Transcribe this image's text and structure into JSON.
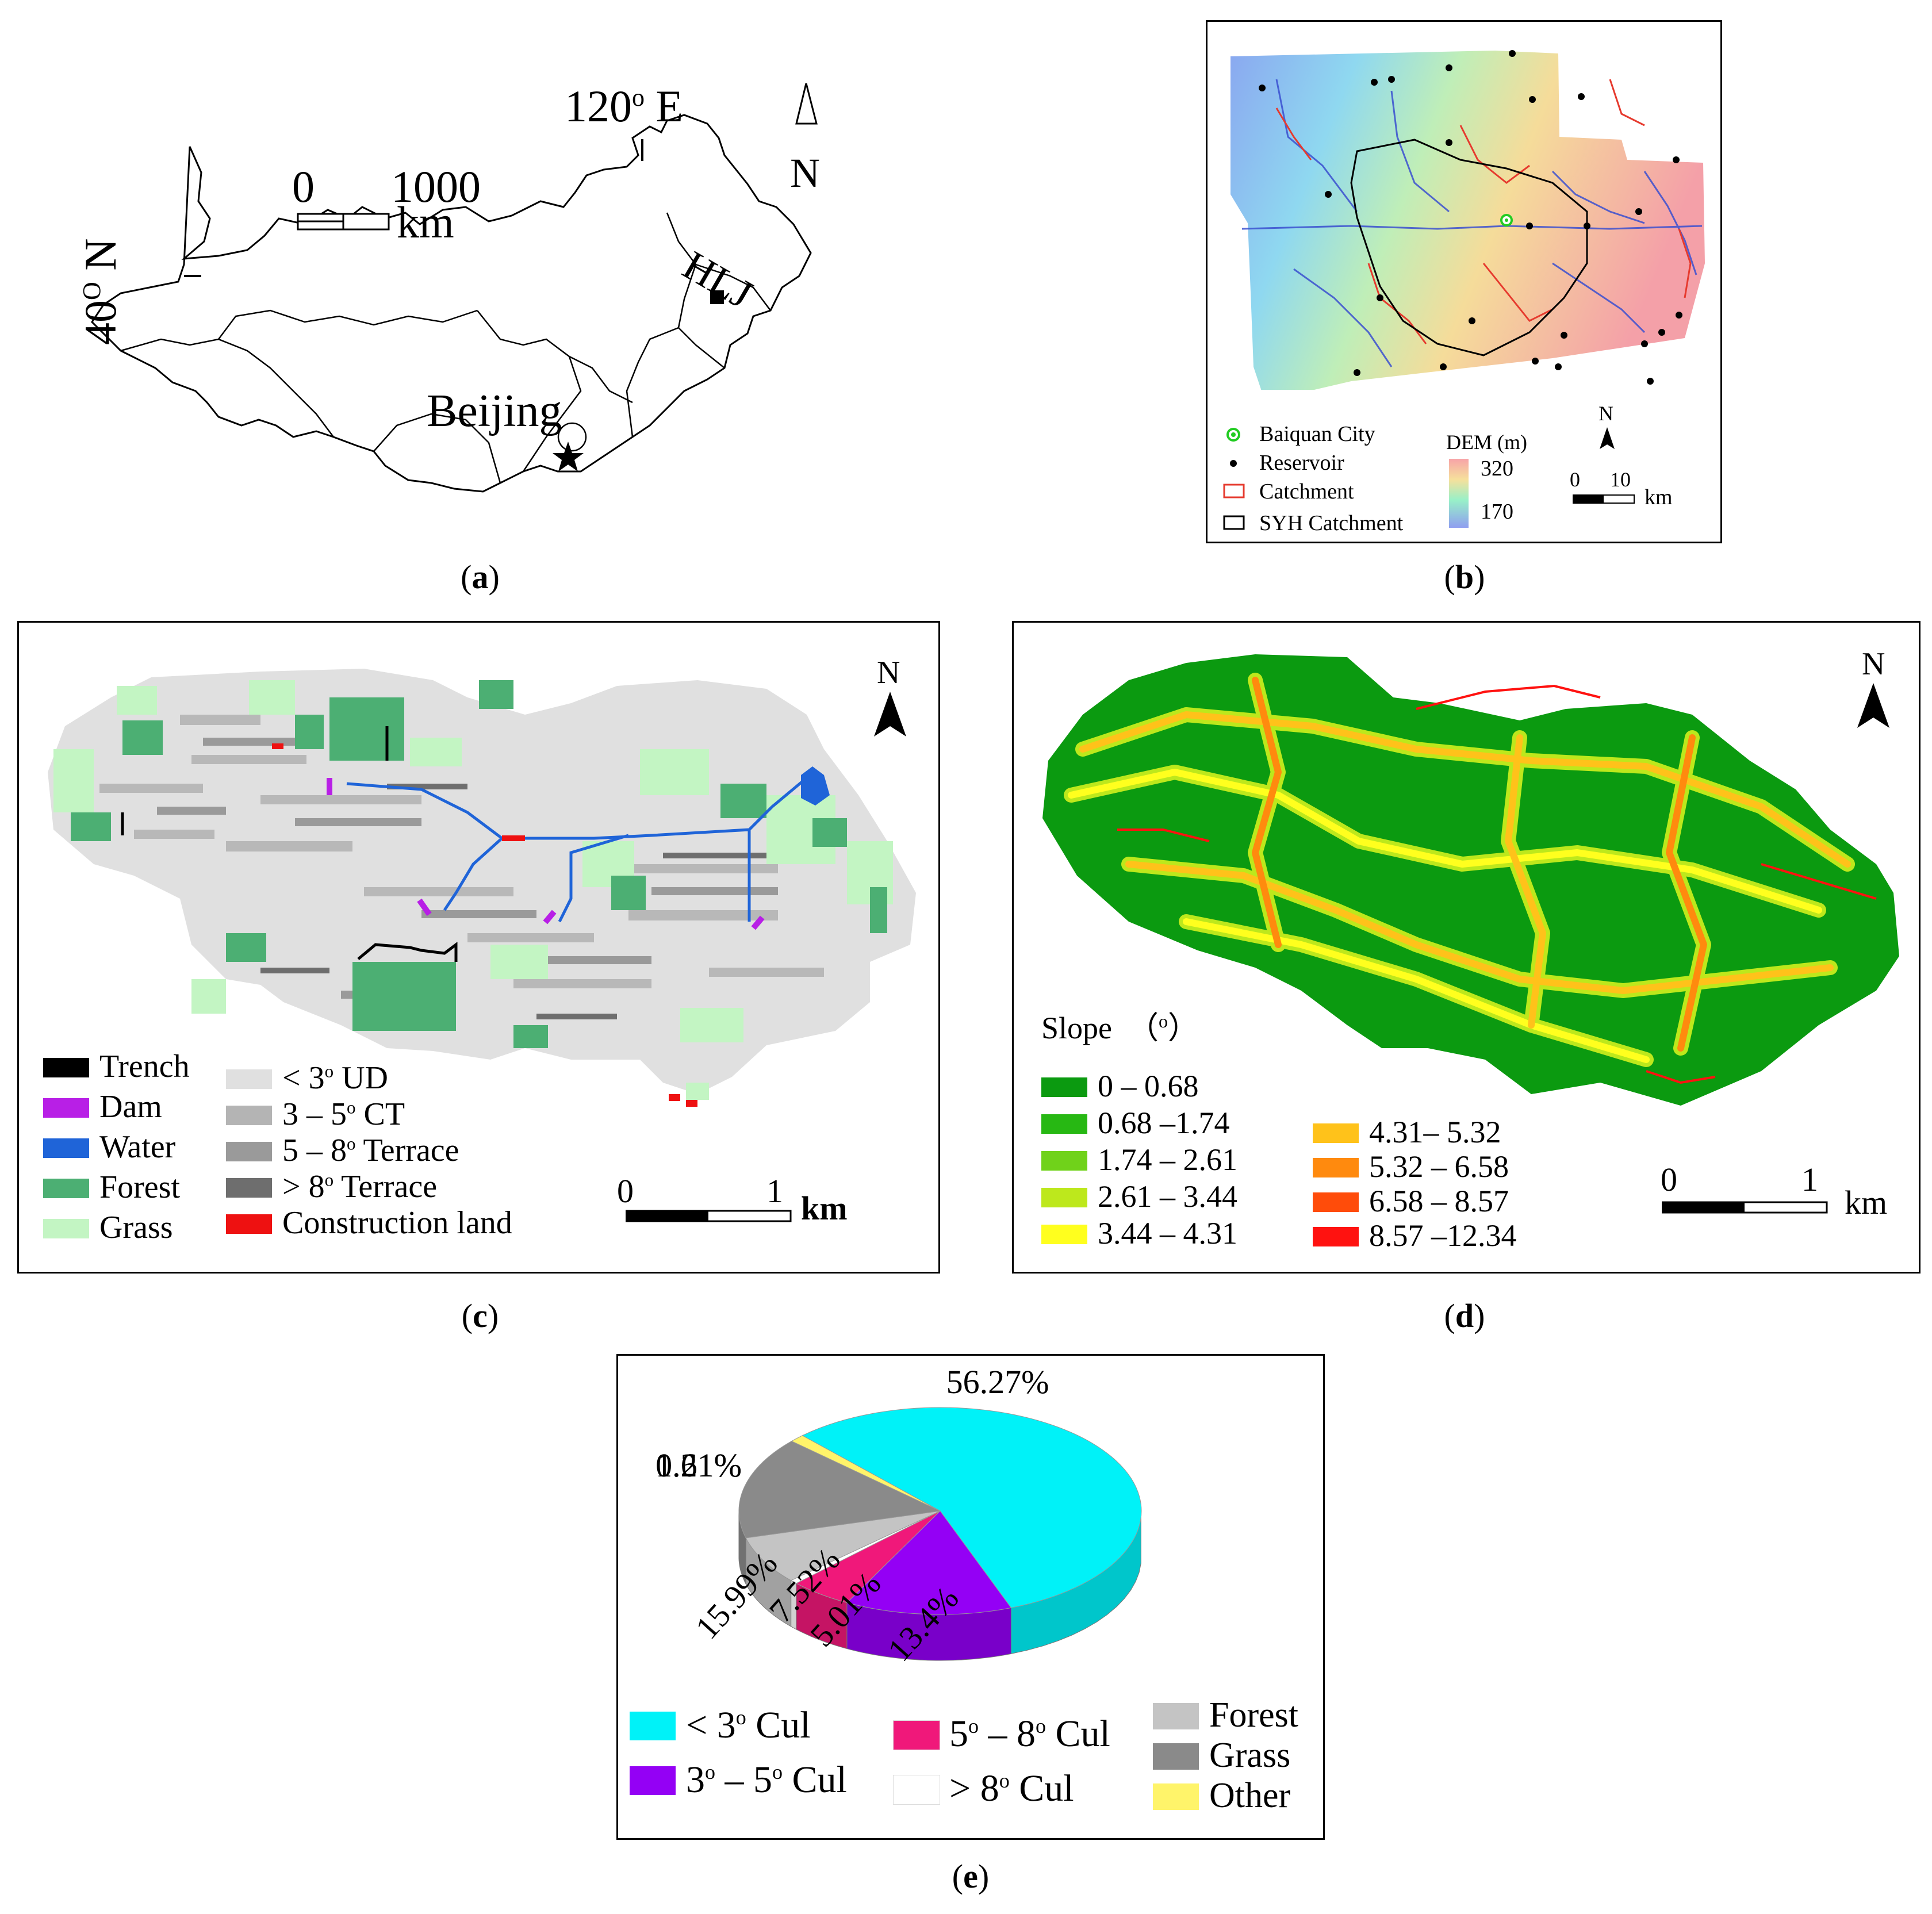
{
  "panel_a": {
    "caption_letter": "a",
    "lon_label": "120",
    "lon_deg": "o",
    "lon_dir": "E",
    "lat_label": "40",
    "lat_deg": "O",
    "lat_dir": "N",
    "north": "N",
    "scale": {
      "start": "0",
      "end": "1000",
      "unit": "km"
    },
    "places": {
      "hlj": "HLJ",
      "beijing": "Beijing"
    }
  },
  "panel_b": {
    "caption_letter": "b",
    "legend": {
      "city": "Baiquan City",
      "reservoir": "Reservoir",
      "catchment": "Catchment",
      "syh": "SYH Catchment"
    },
    "dem": {
      "title": "DEM (m)",
      "max": "320",
      "min": "170"
    },
    "north": "N",
    "scale": {
      "start": "0",
      "end": "10",
      "unit": "km"
    },
    "colors": {
      "catchment": "#e63a2e",
      "syh": "#000000",
      "city": "#22cc22"
    }
  },
  "panel_c": {
    "caption_letter": "c",
    "north": "N",
    "scale": {
      "start": "0",
      "end": "1",
      "unit": "km"
    },
    "legend_left": [
      {
        "label": "Trench",
        "color": "#000000"
      },
      {
        "label": "Dam",
        "color": "#b81fe6"
      },
      {
        "label": "Water",
        "color": "#1f64d8"
      },
      {
        "label": "Forest",
        "color": "#4caf73"
      },
      {
        "label": "Grass",
        "color": "#c3f5c3"
      }
    ],
    "legend_right": [
      {
        "pre": "< 3",
        "sup": "o",
        "post": " UD",
        "color": "#e0e0e0"
      },
      {
        "pre": "3 – 5",
        "sup": "o",
        "post": " CT",
        "color": "#b4b4b4"
      },
      {
        "pre": "5 – 8",
        "sup": "o",
        "post": " Terrace",
        "color": "#9a9a9a"
      },
      {
        "pre": "> 8",
        "sup": "o",
        "post": " Terrace",
        "color": "#6e6e6e"
      },
      {
        "pre": "Construction land",
        "sup": "",
        "post": "",
        "color": "#ee1111"
      }
    ]
  },
  "panel_d": {
    "caption_letter": "d",
    "north": "N",
    "slope_title": "Slope  （",
    "slope_unit": "o",
    "slope_close": "）",
    "scale": {
      "start": "0",
      "end": "1",
      "unit": "km"
    },
    "legend_left": [
      {
        "label": "0 – 0.68",
        "color": "#0b9a10"
      },
      {
        "label": "0.68 –1.74",
        "color": "#27b813"
      },
      {
        "label": "1.74 – 2.61",
        "color": "#70d21a"
      },
      {
        "label": "2.61 – 3.44",
        "color": "#bde81c"
      },
      {
        "label": "3.44 – 4.31",
        "color": "#ffff1e"
      }
    ],
    "legend_right": [
      {
        "label": "4.31– 5.32",
        "color": "#ffc21a"
      },
      {
        "label": "5.32 – 6.58",
        "color": "#ff8a0e"
      },
      {
        "label": "6.58 – 8.57",
        "color": "#ff4c0a"
      },
      {
        "label": "8.57 –12.34",
        "color": "#ff1210"
      }
    ]
  },
  "panel_e": {
    "caption_letter": "e",
    "chart_data": {
      "type": "pie",
      "slices": [
        {
          "name": "< 3° Cul",
          "value": 56.27,
          "label": "56.27%",
          "color": "#00f2f8"
        },
        {
          "name": "3° – 5° Cul",
          "value": 13.4,
          "label": "13.4%",
          "color": "#9400f5"
        },
        {
          "name": "5° – 8° Cul",
          "value": 5.01,
          "label": "5.01%",
          "color": "#f0187a"
        },
        {
          "name": "> 8° Cul",
          "value": 0.61,
          "label": "0.61%",
          "color": "#ffffff"
        },
        {
          "name": "Forest",
          "value": 7.52,
          "label": "7.52%",
          "color": "#c4c4c4"
        },
        {
          "name": "Grass",
          "value": 15.99,
          "label": "15.99%",
          "color": "#8a8a8a"
        },
        {
          "name": "Other",
          "value": 1.21,
          "label": "1.21%",
          "color": "#fff46a"
        }
      ]
    },
    "legend_left": [
      {
        "pre": "< 3",
        "sup": "o",
        "post": " Cul",
        "color": "#00f2f8"
      },
      {
        "pre": "3",
        "sup": "o",
        "post": " – 5",
        "sup2": "o",
        "post2": " Cul",
        "color": "#9400f5"
      }
    ],
    "legend_mid": [
      {
        "pre": "5",
        "sup": "o",
        "post": " – 8",
        "sup2": "o",
        "post2": " Cul",
        "color": "#f0187a"
      },
      {
        "pre": "> 8",
        "sup": "o",
        "post": " Cul",
        "color": "#ffffff"
      }
    ],
    "legend_right": [
      {
        "label": "Forest",
        "color": "#c4c4c4"
      },
      {
        "label": "Grass",
        "color": "#8a8a8a"
      },
      {
        "label": "Other",
        "color": "#fff46a"
      }
    ]
  }
}
